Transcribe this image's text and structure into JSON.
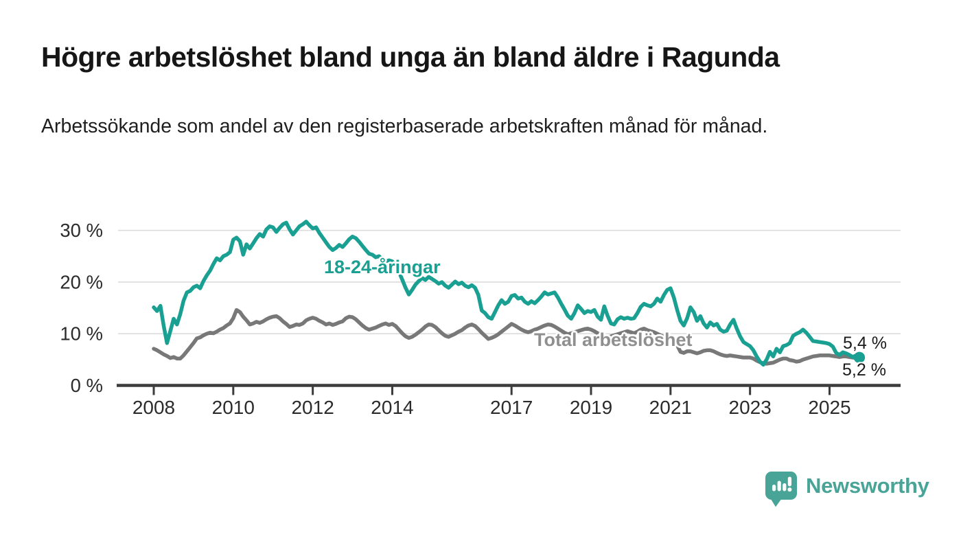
{
  "header": {
    "title": "Högre arbetslöshet bland unga än bland äldre i Ragunda",
    "subtitle": "Arbetssökande som andel av den registerbaserade arbetskraften månad för månad."
  },
  "chart_data": {
    "type": "line",
    "title": "Högre arbetslöshet bland unga än bland äldre i Ragunda",
    "subtitle": "Arbetssökande som andel av den registerbaserade arbetskraften månad för månad.",
    "unit": "%",
    "x_start": "2008-01",
    "x_end": "2025-10",
    "x_interval": "monthly",
    "x_tick_labels": [
      "2008",
      "2010",
      "2012",
      "2014",
      "2017",
      "2019",
      "2021",
      "2023",
      "2025"
    ],
    "x_tick_years": [
      2008,
      2010,
      2012,
      2014,
      2017,
      2019,
      2021,
      2023,
      2025
    ],
    "y_ticks": [
      {
        "value": 0,
        "label": "0 %"
      },
      {
        "value": 10,
        "label": "10 %"
      },
      {
        "value": 20,
        "label": "20 %"
      },
      {
        "value": 30,
        "label": "30 %"
      }
    ],
    "ylim": [
      0,
      33.5
    ],
    "grid": "horizontal",
    "legend_position": "inline-annotations",
    "series": [
      {
        "name": "Total arbetslöshet",
        "color": "#787878",
        "label_color": "#8f8f8f",
        "end_label": "5,2 %",
        "end_value": 5.2,
        "end_dot": false,
        "values": [
          7.1,
          6.8,
          6.4,
          6.0,
          5.7,
          5.3,
          5.5,
          5.2,
          5.2,
          5.8,
          6.6,
          7.4,
          8.2,
          9.1,
          9.3,
          9.7,
          10.0,
          10.2,
          10.1,
          10.4,
          10.8,
          11.1,
          11.6,
          12.0,
          13.0,
          14.6,
          14.2,
          13.3,
          12.6,
          11.8,
          12.0,
          12.3,
          12.1,
          12.4,
          12.8,
          13.1,
          13.3,
          13.4,
          13.0,
          12.4,
          11.9,
          11.3,
          11.5,
          11.8,
          11.7,
          12.0,
          12.6,
          12.9,
          13.1,
          12.9,
          12.5,
          12.2,
          11.8,
          12.0,
          11.7,
          11.9,
          12.2,
          12.4,
          13.0,
          13.3,
          13.2,
          12.8,
          12.2,
          11.6,
          11.1,
          10.8,
          11.0,
          11.2,
          11.5,
          11.8,
          12.0,
          11.7,
          11.9,
          11.5,
          10.8,
          10.1,
          9.5,
          9.2,
          9.4,
          9.8,
          10.3,
          10.8,
          11.4,
          11.8,
          11.7,
          11.3,
          10.7,
          10.1,
          9.6,
          9.4,
          9.7,
          10.0,
          10.4,
          10.7,
          11.2,
          11.6,
          11.8,
          11.5,
          10.9,
          10.2,
          9.6,
          9.0,
          9.2,
          9.5,
          9.9,
          10.4,
          10.9,
          11.4,
          11.9,
          11.6,
          11.2,
          10.8,
          10.5,
          10.3,
          10.5,
          10.8,
          11.0,
          11.3,
          11.6,
          11.8,
          11.7,
          11.4,
          11.0,
          10.6,
          10.2,
          9.9,
          10.1,
          10.3,
          10.5,
          10.7,
          10.9,
          11.0,
          10.8,
          10.5,
          10.1,
          9.8,
          9.5,
          9.3,
          9.5,
          9.7,
          9.9,
          10.1,
          10.3,
          10.5,
          10.3,
          10.1,
          10.4,
          10.8,
          11.0,
          10.7,
          10.5,
          10.3,
          10.0,
          9.7,
          9.4,
          9.2,
          8.8,
          8.4,
          7.8,
          6.5,
          6.3,
          6.6,
          6.6,
          6.4,
          6.2,
          6.4,
          6.7,
          6.8,
          6.8,
          6.6,
          6.3,
          6.0,
          5.8,
          5.7,
          5.8,
          5.7,
          5.6,
          5.5,
          5.4,
          5.4,
          5.4,
          5.2,
          4.8,
          4.5,
          4.3,
          4.2,
          4.3,
          4.4,
          4.7,
          5.0,
          5.2,
          5.2,
          4.9,
          4.8,
          4.6,
          4.7,
          5.0,
          5.2,
          5.4,
          5.6,
          5.7,
          5.8,
          5.8,
          5.8,
          5.8,
          5.7,
          5.6,
          5.5,
          5.6,
          5.6,
          5.5,
          5.4,
          5.3,
          5.2
        ]
      },
      {
        "name": "18-24-åringar",
        "color": "#1aa092",
        "label_color": "#1aa092",
        "end_label": "5,4 %",
        "end_value": 5.4,
        "end_dot": true,
        "values": [
          15.1,
          14.4,
          15.4,
          11.5,
          8.2,
          10.5,
          12.9,
          11.8,
          13.8,
          16.4,
          18.0,
          18.3,
          19.0,
          19.3,
          18.8,
          20.2,
          21.3,
          22.2,
          23.5,
          24.6,
          24.2,
          25.0,
          25.3,
          25.8,
          28.2,
          28.6,
          27.9,
          25.3,
          27.3,
          26.5,
          27.5,
          28.5,
          29.3,
          28.8,
          30.2,
          30.8,
          30.6,
          29.7,
          30.5,
          31.2,
          31.5,
          30.2,
          29.2,
          30.0,
          30.8,
          31.2,
          31.7,
          31.0,
          30.4,
          30.6,
          29.5,
          28.6,
          27.7,
          26.8,
          26.2,
          26.6,
          27.2,
          26.8,
          27.5,
          28.3,
          28.8,
          28.5,
          27.8,
          27.0,
          26.2,
          25.5,
          25.3,
          24.8,
          25.0,
          24.4,
          24.0,
          24.2,
          24.0,
          23.2,
          22.0,
          20.5,
          18.9,
          17.6,
          18.5,
          19.5,
          20.2,
          20.8,
          20.4,
          21.0,
          20.6,
          20.2,
          19.7,
          20.0,
          19.3,
          18.9,
          19.5,
          20.1,
          19.6,
          19.9,
          19.3,
          19.0,
          19.4,
          18.9,
          17.5,
          14.5,
          14.0,
          13.2,
          12.9,
          14.2,
          15.5,
          16.5,
          15.8,
          16.2,
          17.3,
          17.5,
          16.8,
          17.0,
          16.2,
          15.8,
          16.3,
          15.9,
          16.5,
          17.2,
          18.0,
          17.6,
          17.8,
          18.0,
          17.0,
          15.8,
          14.7,
          13.5,
          12.9,
          14.0,
          15.5,
          14.8,
          14.0,
          14.4,
          14.2,
          14.6,
          13.3,
          12.7,
          15.3,
          13.5,
          12.0,
          11.8,
          12.8,
          13.2,
          12.9,
          13.1,
          12.9,
          13.0,
          14.0,
          15.2,
          15.8,
          15.5,
          15.3,
          15.8,
          16.8,
          16.2,
          17.5,
          18.5,
          18.8,
          17.0,
          14.6,
          12.5,
          11.6,
          13.0,
          15.1,
          14.2,
          12.5,
          13.4,
          12.0,
          11.2,
          12.2,
          11.6,
          11.9,
          10.8,
          10.4,
          10.6,
          11.8,
          12.7,
          11.0,
          9.5,
          8.4,
          8.0,
          7.6,
          6.8,
          5.6,
          4.6,
          4.0,
          5.0,
          6.5,
          5.6,
          7.1,
          6.4,
          7.6,
          7.8,
          8.2,
          9.6,
          10.0,
          10.3,
          10.8,
          10.2,
          9.4,
          8.6,
          8.5,
          8.4,
          8.3,
          8.2,
          8.0,
          7.5,
          6.3,
          5.9,
          6.4,
          6.2,
          5.9,
          5.5,
          5.8,
          5.4
        ]
      }
    ],
    "annotations": [
      {
        "text": "18-24-åringar",
        "series": "18-24-åringar"
      },
      {
        "text": "Total arbetslöshet",
        "series": "Total arbetslöshet"
      }
    ],
    "axis_color": "#3c3c3c",
    "grid_color": "#dcdcdc",
    "tick_label_color": "#2b2b2b"
  },
  "footer": {
    "brand": "Newsworthy",
    "logo_color": "#48a497",
    "logo_icon": "bar-chart-speech-bubble-icon"
  }
}
